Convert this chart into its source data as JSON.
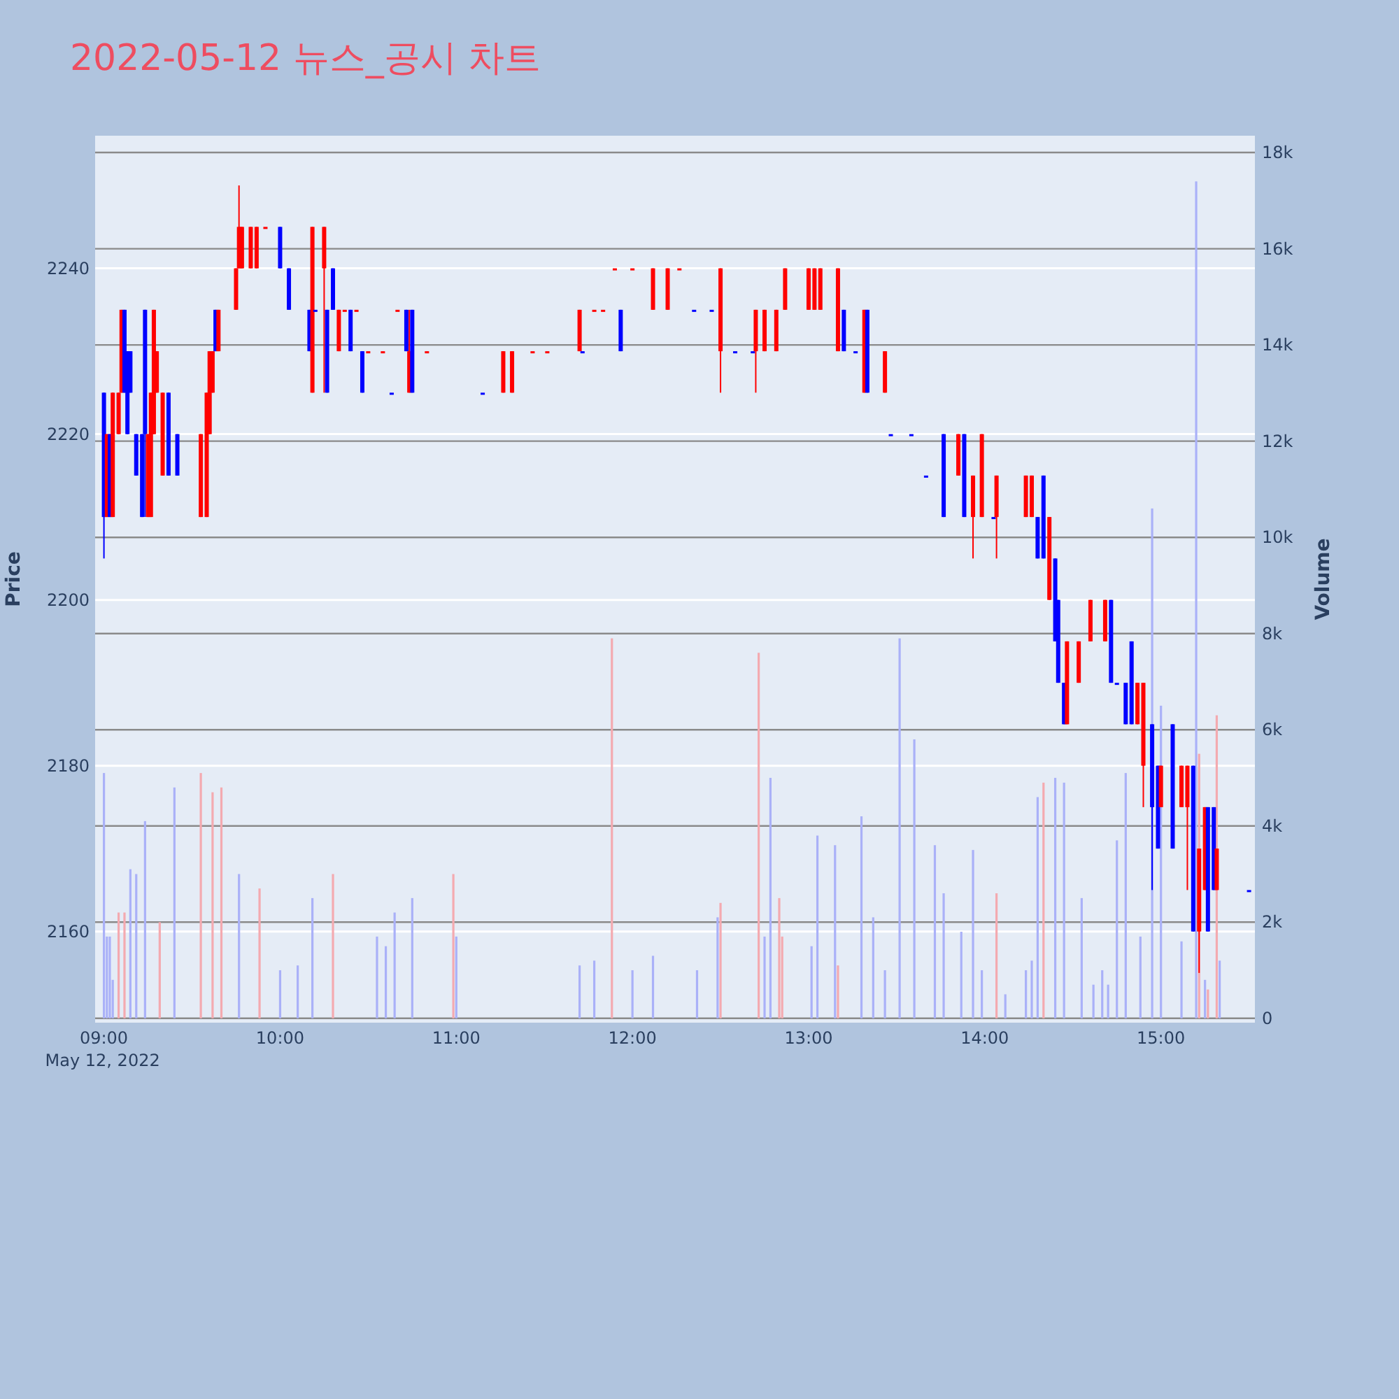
{
  "chart_data": {
    "type": "candlestick",
    "title": "2022-05-12 뉴스_공시 차트",
    "ylabel": "Price",
    "y2label": "Volume",
    "annotations": [
      "May 12, 2022"
    ],
    "grid": "y",
    "x": [
      "2022-05-12T09:00",
      "2022-05-12T09:01",
      "2022-05-12T09:02",
      "2022-05-12T09:03",
      "2022-05-12T09:05",
      "2022-05-12T09:06",
      "2022-05-12T09:07",
      "2022-05-12T09:08",
      "2022-05-12T09:09",
      "2022-05-12T09:11",
      "2022-05-12T09:13",
      "2022-05-12T09:14",
      "2022-05-12T09:15",
      "2022-05-12T09:16",
      "2022-05-12T09:17",
      "2022-05-12T09:18",
      "2022-05-12T09:20",
      "2022-05-12T09:22",
      "2022-05-12T09:25",
      "2022-05-12T09:33",
      "2022-05-12T09:35",
      "2022-05-12T09:36",
      "2022-05-12T09:37",
      "2022-05-12T09:38",
      "2022-05-12T09:39",
      "2022-05-12T09:45",
      "2022-05-12T09:46",
      "2022-05-12T09:47",
      "2022-05-12T09:50",
      "2022-05-12T09:52",
      "2022-05-12T09:55",
      "2022-05-12T10:00",
      "2022-05-12T10:03",
      "2022-05-12T10:10",
      "2022-05-12T10:11",
      "2022-05-12T10:12",
      "2022-05-12T10:15",
      "2022-05-12T10:16",
      "2022-05-12T10:18",
      "2022-05-12T10:20",
      "2022-05-12T10:22",
      "2022-05-12T10:24",
      "2022-05-12T10:26",
      "2022-05-12T10:28",
      "2022-05-12T10:30",
      "2022-05-12T10:35",
      "2022-05-12T10:38",
      "2022-05-12T10:40",
      "2022-05-12T10:43",
      "2022-05-12T10:44",
      "2022-05-12T10:45",
      "2022-05-12T10:50",
      "2022-05-12T11:09",
      "2022-05-12T11:16",
      "2022-05-12T11:19",
      "2022-05-12T11:26",
      "2022-05-12T11:31",
      "2022-05-12T11:42",
      "2022-05-12T11:43",
      "2022-05-12T11:47",
      "2022-05-12T11:50",
      "2022-05-12T11:54",
      "2022-05-12T11:56",
      "2022-05-12T12:00",
      "2022-05-12T12:07",
      "2022-05-12T12:12",
      "2022-05-12T12:16",
      "2022-05-12T12:21",
      "2022-05-12T12:27",
      "2022-05-12T12:30",
      "2022-05-12T12:35",
      "2022-05-12T12:41",
      "2022-05-12T12:42",
      "2022-05-12T12:45",
      "2022-05-12T12:49",
      "2022-05-12T12:52",
      "2022-05-12T13:00",
      "2022-05-12T13:02",
      "2022-05-12T13:04",
      "2022-05-12T13:10",
      "2022-05-12T13:12",
      "2022-05-12T13:16",
      "2022-05-12T13:19",
      "2022-05-12T13:20",
      "2022-05-12T13:26",
      "2022-05-12T13:28",
      "2022-05-12T13:35",
      "2022-05-12T13:40",
      "2022-05-12T13:46",
      "2022-05-12T13:51",
      "2022-05-12T13:53",
      "2022-05-12T13:56",
      "2022-05-12T13:59",
      "2022-05-12T14:03",
      "2022-05-12T14:04",
      "2022-05-12T14:14",
      "2022-05-12T14:16",
      "2022-05-12T14:18",
      "2022-05-12T14:20",
      "2022-05-12T14:22",
      "2022-05-12T14:24",
      "2022-05-12T14:25",
      "2022-05-12T14:27",
      "2022-05-12T14:28",
      "2022-05-12T14:32",
      "2022-05-12T14:36",
      "2022-05-12T14:41",
      "2022-05-12T14:43",
      "2022-05-12T14:45",
      "2022-05-12T14:48",
      "2022-05-12T14:50",
      "2022-05-12T14:52",
      "2022-05-12T14:54",
      "2022-05-12T14:57",
      "2022-05-12T14:59",
      "2022-05-12T15:00",
      "2022-05-12T15:04",
      "2022-05-12T15:07",
      "2022-05-12T15:09",
      "2022-05-12T15:11",
      "2022-05-12T15:13",
      "2022-05-12T15:15",
      "2022-05-12T15:16",
      "2022-05-12T15:18",
      "2022-05-12T15:19",
      "2022-05-12T15:30"
    ],
    "ohlc": [
      [
        2225,
        2225,
        2205,
        2210
      ],
      [
        2210,
        2220,
        2210,
        2220
      ],
      [
        2220,
        2220,
        2210,
        2210
      ],
      [
        2210,
        2225,
        2210,
        2225
      ],
      [
        2220,
        2225,
        2220,
        2225
      ],
      [
        2225,
        2235,
        2225,
        2235
      ],
      [
        2235,
        2235,
        2225,
        2225
      ],
      [
        2230,
        2230,
        2220,
        2220
      ],
      [
        2230,
        2230,
        2225,
        2225
      ],
      [
        2220,
        2220,
        2215,
        2215
      ],
      [
        2220,
        2220,
        2210,
        2210
      ],
      [
        2235,
        2235,
        2210,
        2220
      ],
      [
        2210,
        2220,
        2210,
        2220
      ],
      [
        2210,
        2225,
        2210,
        2225
      ],
      [
        2220,
        2235,
        2220,
        2235
      ],
      [
        2225,
        2230,
        2225,
        2230
      ],
      [
        2215,
        2225,
        2215,
        2225
      ],
      [
        2225,
        2225,
        2215,
        2215
      ],
      [
        2220,
        2220,
        2215,
        2215
      ],
      [
        2210,
        2220,
        2210,
        2220
      ],
      [
        2210,
        2225,
        2210,
        2225
      ],
      [
        2220,
        2230,
        2220,
        2230
      ],
      [
        2225,
        2230,
        2225,
        2230
      ],
      [
        2235,
        2235,
        2230,
        2230
      ],
      [
        2230,
        2235,
        2230,
        2235
      ],
      [
        2235,
        2240,
        2235,
        2240
      ],
      [
        2240,
        2250,
        2240,
        2245
      ],
      [
        2240,
        2245,
        2240,
        2245
      ],
      [
        2240,
        2245,
        2240,
        2245
      ],
      [
        2240,
        2245,
        2240,
        2245
      ],
      [
        2245,
        2245,
        2245,
        2245
      ],
      [
        2245,
        2245,
        2240,
        2240
      ],
      [
        2240,
        2240,
        2235,
        2235
      ],
      [
        2235,
        2235,
        2230,
        2230
      ],
      [
        2225,
        2245,
        2225,
        2245
      ],
      [
        2235,
        2235,
        2235,
        2235
      ],
      [
        2240,
        2245,
        2225,
        2245
      ],
      [
        2235,
        2235,
        2225,
        2225
      ],
      [
        2240,
        2240,
        2235,
        2235
      ],
      [
        2230,
        2235,
        2230,
        2235
      ],
      [
        2235,
        2235,
        2235,
        2235
      ],
      [
        2235,
        2235,
        2230,
        2230
      ],
      [
        2235,
        2235,
        2235,
        2235
      ],
      [
        2230,
        2230,
        2225,
        2225
      ],
      [
        2230,
        2230,
        2230,
        2230
      ],
      [
        2230,
        2230,
        2230,
        2230
      ],
      [
        2225,
        2225,
        2225,
        2225
      ],
      [
        2235,
        2235,
        2235,
        2235
      ],
      [
        2235,
        2235,
        2230,
        2230
      ],
      [
        2225,
        2235,
        2225,
        2230
      ],
      [
        2235,
        2235,
        2225,
        2225
      ],
      [
        2230,
        2230,
        2230,
        2230
      ],
      [
        2225,
        2225,
        2225,
        2225
      ],
      [
        2225,
        2230,
        2225,
        2230
      ],
      [
        2225,
        2230,
        2225,
        2230
      ],
      [
        2230,
        2230,
        2230,
        2230
      ],
      [
        2230,
        2230,
        2230,
        2230
      ],
      [
        2230,
        2235,
        2230,
        2235
      ],
      [
        2230,
        2230,
        2230,
        2230
      ],
      [
        2235,
        2235,
        2235,
        2235
      ],
      [
        2235,
        2235,
        2235,
        2235
      ],
      [
        2240,
        2240,
        2240,
        2240
      ],
      [
        2235,
        2235,
        2230,
        2230
      ],
      [
        2240,
        2240,
        2240,
        2240
      ],
      [
        2235,
        2240,
        2235,
        2240
      ],
      [
        2235,
        2240,
        2235,
        2240
      ],
      [
        2240,
        2240,
        2240,
        2240
      ],
      [
        2235,
        2235,
        2235,
        2235
      ],
      [
        2235,
        2235,
        2235,
        2235
      ],
      [
        2230,
        2240,
        2225,
        2240
      ],
      [
        2230,
        2230,
        2230,
        2230
      ],
      [
        2230,
        2230,
        2230,
        2230
      ],
      [
        2230,
        2235,
        2225,
        2235
      ],
      [
        2230,
        2235,
        2230,
        2235
      ],
      [
        2230,
        2235,
        2230,
        2235
      ],
      [
        2235,
        2240,
        2235,
        2240
      ],
      [
        2235,
        2240,
        2235,
        2240
      ],
      [
        2235,
        2240,
        2235,
        2240
      ],
      [
        2235,
        2240,
        2235,
        2240
      ],
      [
        2230,
        2240,
        2230,
        2240
      ],
      [
        2235,
        2235,
        2230,
        2230
      ],
      [
        2230,
        2230,
        2230,
        2230
      ],
      [
        2225,
        2235,
        2225,
        2235
      ],
      [
        2235,
        2235,
        2225,
        2225
      ],
      [
        2225,
        2230,
        2225,
        2230
      ],
      [
        2220,
        2220,
        2220,
        2220
      ],
      [
        2220,
        2220,
        2220,
        2220
      ],
      [
        2215,
        2215,
        2215,
        2215
      ],
      [
        2220,
        2220,
        2210,
        2210
      ],
      [
        2215,
        2220,
        2215,
        2220
      ],
      [
        2220,
        2220,
        2210,
        2210
      ],
      [
        2210,
        2215,
        2205,
        2215
      ],
      [
        2210,
        2220,
        2210,
        2220
      ],
      [
        2210,
        2210,
        2210,
        2210
      ],
      [
        2210,
        2215,
        2205,
        2215
      ],
      [
        2210,
        2215,
        2210,
        2215
      ],
      [
        2210,
        2215,
        2210,
        2215
      ],
      [
        2210,
        2210,
        2205,
        2205
      ],
      [
        2215,
        2215,
        2205,
        2205
      ],
      [
        2200,
        2210,
        2200,
        2210
      ],
      [
        2205,
        2205,
        2195,
        2195
      ],
      [
        2200,
        2200,
        2190,
        2190
      ],
      [
        2190,
        2190,
        2185,
        2185
      ],
      [
        2185,
        2195,
        2185,
        2195
      ],
      [
        2190,
        2195,
        2190,
        2195
      ],
      [
        2195,
        2200,
        2195,
        2200
      ],
      [
        2195,
        2200,
        2195,
        2200
      ],
      [
        2200,
        2200,
        2190,
        2190
      ],
      [
        2190,
        2190,
        2190,
        2190
      ],
      [
        2190,
        2190,
        2185,
        2185
      ],
      [
        2195,
        2195,
        2185,
        2185
      ],
      [
        2185,
        2190,
        2185,
        2190
      ],
      [
        2180,
        2190,
        2175,
        2190
      ],
      [
        2185,
        2185,
        2165,
        2175
      ],
      [
        2180,
        2180,
        2170,
        2170
      ],
      [
        2175,
        2180,
        2175,
        2180
      ],
      [
        2185,
        2185,
        2170,
        2170
      ],
      [
        2175,
        2180,
        2175,
        2180
      ],
      [
        2175,
        2180,
        2165,
        2180
      ],
      [
        2180,
        2180,
        2160,
        2160
      ],
      [
        2160,
        2170,
        2155,
        2170
      ],
      [
        2165,
        2175,
        2165,
        2175
      ],
      [
        2175,
        2175,
        2160,
        2160
      ],
      [
        2175,
        2175,
        2165,
        2165
      ],
      [
        2165,
        2170,
        2165,
        2170
      ],
      [
        2165,
        2165,
        2165,
        2165
      ]
    ],
    "colors": [
      "#0000ff",
      "#ff0000",
      "#0000ff",
      "#ff0000",
      "#ff0000",
      "#ff0000",
      "#0000ff",
      "#0000ff",
      "#0000ff",
      "#0000ff",
      "#0000ff",
      "#0000ff",
      "#ff0000",
      "#ff0000",
      "#ff0000",
      "#ff0000",
      "#ff0000",
      "#0000ff",
      "#0000ff",
      "#ff0000",
      "#ff0000",
      "#ff0000",
      "#ff0000",
      "#0000ff",
      "#ff0000",
      "#ff0000",
      "#ff0000",
      "#ff0000",
      "#ff0000",
      "#ff0000",
      "#ff0000",
      "#0000ff",
      "#0000ff",
      "#0000ff",
      "#ff0000",
      "#0000ff",
      "#ff0000",
      "#0000ff",
      "#0000ff",
      "#ff0000",
      "#ff0000",
      "#0000ff",
      "#ff0000",
      "#0000ff",
      "#ff0000",
      "#ff0000",
      "#0000ff",
      "#ff0000",
      "#0000ff",
      "#ff0000",
      "#0000ff",
      "#ff0000",
      "#0000ff",
      "#ff0000",
      "#ff0000",
      "#ff0000",
      "#ff0000",
      "#ff0000",
      "#0000ff",
      "#ff0000",
      "#ff0000",
      "#ff0000",
      "#0000ff",
      "#ff0000",
      "#ff0000",
      "#ff0000",
      "#ff0000",
      "#0000ff",
      "#0000ff",
      "#ff0000",
      "#0000ff",
      "#0000ff",
      "#ff0000",
      "#ff0000",
      "#ff0000",
      "#ff0000",
      "#ff0000",
      "#ff0000",
      "#ff0000",
      "#ff0000",
      "#0000ff",
      "#0000ff",
      "#ff0000",
      "#0000ff",
      "#ff0000",
      "#0000ff",
      "#0000ff",
      "#0000ff",
      "#0000ff",
      "#ff0000",
      "#0000ff",
      "#ff0000",
      "#ff0000",
      "#0000ff",
      "#ff0000",
      "#ff0000",
      "#ff0000",
      "#0000ff",
      "#0000ff",
      "#ff0000",
      "#0000ff",
      "#0000ff",
      "#0000ff",
      "#ff0000",
      "#ff0000",
      "#ff0000",
      "#ff0000",
      "#0000ff",
      "#0000ff",
      "#0000ff",
      "#0000ff",
      "#ff0000",
      "#ff0000",
      "#0000ff",
      "#0000ff",
      "#ff0000",
      "#0000ff",
      "#ff0000",
      "#ff0000",
      "#0000ff",
      "#ff0000",
      "#ff0000",
      "#0000ff",
      "#0000ff",
      "#ff0000",
      "#0000ff"
    ],
    "series": [
      {
        "type": "bar",
        "axis": "y2",
        "x": [
          "2022-05-12T09:00",
          "2022-05-12T09:01",
          "2022-05-12T09:02",
          "2022-05-12T09:03",
          "2022-05-12T09:05",
          "2022-05-12T09:07",
          "2022-05-12T09:09",
          "2022-05-12T09:11",
          "2022-05-12T09:14",
          "2022-05-12T09:19",
          "2022-05-12T09:24",
          "2022-05-12T09:33",
          "2022-05-12T09:37",
          "2022-05-12T09:40",
          "2022-05-12T09:46",
          "2022-05-12T09:53",
          "2022-05-12T10:00",
          "2022-05-12T10:06",
          "2022-05-12T10:11",
          "2022-05-12T10:18",
          "2022-05-12T10:33",
          "2022-05-12T10:36",
          "2022-05-12T10:39",
          "2022-05-12T10:45",
          "2022-05-12T10:59",
          "2022-05-12T11:00",
          "2022-05-12T11:42",
          "2022-05-12T11:47",
          "2022-05-12T11:53",
          "2022-05-12T12:00",
          "2022-05-12T12:07",
          "2022-05-12T12:22",
          "2022-05-12T12:29",
          "2022-05-12T12:30",
          "2022-05-12T12:43",
          "2022-05-12T12:45",
          "2022-05-12T12:47",
          "2022-05-12T12:50",
          "2022-05-12T12:51",
          "2022-05-12T13:01",
          "2022-05-12T13:03",
          "2022-05-12T13:09",
          "2022-05-12T13:10",
          "2022-05-12T13:18",
          "2022-05-12T13:22",
          "2022-05-12T13:26",
          "2022-05-12T13:31",
          "2022-05-12T13:36",
          "2022-05-12T13:43",
          "2022-05-12T13:46",
          "2022-05-12T13:52",
          "2022-05-12T13:56",
          "2022-05-12T13:59",
          "2022-05-12T14:04",
          "2022-05-12T14:07",
          "2022-05-12T14:14",
          "2022-05-12T14:16",
          "2022-05-12T14:18",
          "2022-05-12T14:20",
          "2022-05-12T14:24",
          "2022-05-12T14:27",
          "2022-05-12T14:33",
          "2022-05-12T14:37",
          "2022-05-12T14:40",
          "2022-05-12T14:42",
          "2022-05-12T14:45",
          "2022-05-12T14:48",
          "2022-05-12T14:53",
          "2022-05-12T14:57",
          "2022-05-12T15:00",
          "2022-05-12T15:07",
          "2022-05-12T15:12",
          "2022-05-12T15:13",
          "2022-05-12T15:15",
          "2022-05-12T15:16",
          "2022-05-12T15:19",
          "2022-05-12T15:20"
        ],
        "values": [
          5100,
          1700,
          1700,
          800,
          2200,
          2200,
          3100,
          3000,
          4100,
          2000,
          4800,
          5100,
          4700,
          4800,
          3000,
          2700,
          1000,
          1100,
          2500,
          3000,
          1700,
          1500,
          2200,
          2500,
          3000,
          1700,
          1100,
          1200,
          7900,
          1000,
          1300,
          1000,
          2100,
          2400,
          7600,
          1700,
          5000,
          2500,
          1700,
          1500,
          3800,
          3600,
          1100,
          4200,
          2100,
          1000,
          7900,
          5800,
          3600,
          2600,
          1800,
          3500,
          1000,
          2600,
          500,
          1000,
          1200,
          4600,
          4900,
          5000,
          4900,
          2500,
          700,
          1000,
          700,
          3700,
          5100,
          1700,
          10600,
          6500,
          1600,
          17400,
          5500,
          800,
          600,
          6300,
          1200
        ],
        "colors": [
          "#aab1f8",
          "#aab1f8",
          "#aab1f8",
          "#aab1f8",
          "#f4aab0",
          "#f4aab0",
          "#aab1f8",
          "#aab1f8",
          "#aab1f8",
          "#f4aab0",
          "#aab1f8",
          "#f4aab0",
          "#f4aab0",
          "#f4aab0",
          "#aab1f8",
          "#f4aab0",
          "#aab1f8",
          "#aab1f8",
          "#aab1f8",
          "#f4aab0",
          "#aab1f8",
          "#aab1f8",
          "#aab1f8",
          "#aab1f8",
          "#f4aab0",
          "#aab1f8",
          "#aab1f8",
          "#aab1f8",
          "#f4aab0",
          "#aab1f8",
          "#aab1f8",
          "#aab1f8",
          "#aab1f8",
          "#f4aab0",
          "#f4aab0",
          "#aab1f8",
          "#aab1f8",
          "#f4aab0",
          "#f4aab0",
          "#aab1f8",
          "#aab1f8",
          "#aab1f8",
          "#f4aab0",
          "#aab1f8",
          "#aab1f8",
          "#aab1f8",
          "#aab1f8",
          "#aab1f8",
          "#aab1f8",
          "#aab1f8",
          "#aab1f8",
          "#aab1f8",
          "#aab1f8",
          "#f4aab0",
          "#aab1f8",
          "#aab1f8",
          "#aab1f8",
          "#aab1f8",
          "#f4aab0",
          "#aab1f8",
          "#aab1f8",
          "#aab1f8",
          "#aab1f8",
          "#aab1f8",
          "#aab1f8",
          "#aab1f8",
          "#aab1f8",
          "#aab1f8",
          "#aab1f8",
          "#aab1f8",
          "#aab1f8",
          "#aab1f8",
          "#f4aab0",
          "#aab1f8",
          "#f4aab0",
          "#f4aab0",
          "#aab1f8"
        ]
      }
    ],
    "xlim": [
      "2022-05-12T08:57",
      "2022-05-12T15:32"
    ],
    "xticks": [
      {
        "value": "2022-05-12T09:00",
        "label": "09:00"
      },
      {
        "value": "2022-05-12T10:00",
        "label": "10:00"
      },
      {
        "value": "2022-05-12T11:00",
        "label": "11:00"
      },
      {
        "value": "2022-05-12T12:00",
        "label": "12:00"
      },
      {
        "value": "2022-05-12T13:00",
        "label": "13:00"
      },
      {
        "value": "2022-05-12T14:00",
        "label": "14:00"
      },
      {
        "value": "2022-05-12T15:00",
        "label": "15:00"
      }
    ],
    "ylim": [
      2149,
      2256
    ],
    "yticks": [
      2160,
      2180,
      2200,
      2220,
      2240
    ],
    "y2lim": [
      -90,
      18350
    ],
    "y2ticks": [
      0,
      {
        "value": 2000,
        "label": "2k"
      },
      {
        "value": 4000,
        "label": "4k"
      },
      {
        "value": 6000,
        "label": "6k"
      },
      {
        "value": 8000,
        "label": "8k"
      },
      {
        "value": 10000,
        "label": "10k"
      },
      {
        "value": 12000,
        "label": "12k"
      },
      {
        "value": 14000,
        "label": "14k"
      },
      {
        "value": 16000,
        "label": "16k"
      },
      {
        "value": 18000,
        "label": "18k"
      }
    ]
  }
}
